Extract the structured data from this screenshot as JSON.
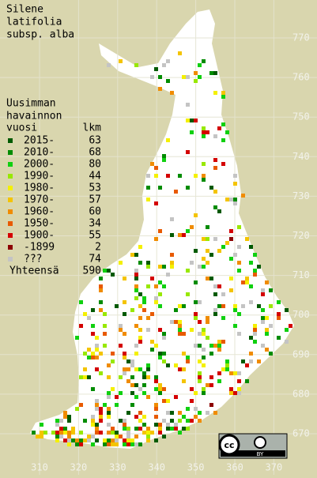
{
  "title": [
    "Silene",
    "latifolia",
    "subsp. alba"
  ],
  "legend": {
    "heading": [
      "Uusimman",
      "havainnon"
    ],
    "year_header": "vuosi",
    "count_header": "lkm",
    "entries": [
      {
        "label": "2015-",
        "count": 63,
        "color": "#005a00"
      },
      {
        "label": "2010-",
        "count": 68,
        "color": "#008c00"
      },
      {
        "label": "2000-",
        "count": 80,
        "color": "#10d010"
      },
      {
        "label": "1990-",
        "count": 44,
        "color": "#98e800"
      },
      {
        "label": "1980-",
        "count": 53,
        "color": "#f4f000"
      },
      {
        "label": "1970-",
        "count": 57,
        "color": "#f4c400"
      },
      {
        "label": "1960-",
        "count": 60,
        "color": "#f08c00"
      },
      {
        "label": "1950-",
        "count": 34,
        "color": "#e85a00"
      },
      {
        "label": "1900-",
        "count": 55,
        "color": "#d40000"
      },
      {
        "label": "-1899",
        "count": 2,
        "color": "#8c0000"
      },
      {
        "label": "???",
        "count": 74,
        "color": "#c4c4c4"
      }
    ],
    "total_label": "Yhteensä",
    "total": 590
  },
  "northing_ticks": [
    770,
    760,
    750,
    740,
    730,
    720,
    710,
    700,
    690,
    680,
    670
  ],
  "easting_ticks": [
    310,
    320,
    330,
    340,
    350,
    360,
    370
  ],
  "license": {
    "cc": "cc",
    "by": "BY"
  }
}
